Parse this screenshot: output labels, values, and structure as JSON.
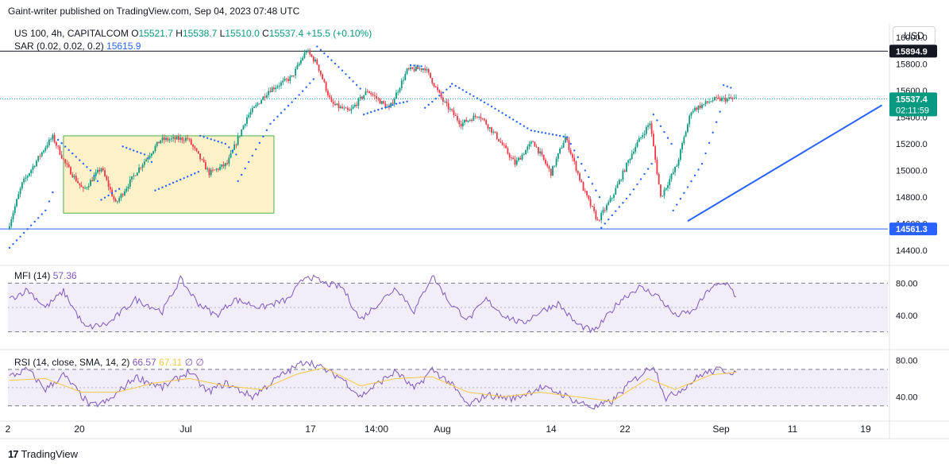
{
  "header": {
    "published": "Gaint-writer published on TradingView.com, Sep 04, 2023 07:48 UTC"
  },
  "legend": {
    "symbol": "US 100, 4h, CAPITALCOM",
    "o_label": "O",
    "o": "15521.7",
    "h_label": "H",
    "h": "15538.7",
    "l_label": "L",
    "l": "15510.0",
    "c_label": "C",
    "c": "15537.4",
    "change": "+15.5 (+0.10%)",
    "sar_label": "SAR (0.02, 0.02, 0.2)",
    "sar_value": "15615.9",
    "mfi_label": "MFI (14)",
    "mfi_value": "57.36",
    "rsi_label": "RSI (14, close, SMA, 14, 2)",
    "rsi_value": "66.57",
    "rsi_ma": "67.11",
    "rsi_z1": "∅",
    "rsi_z2": "∅"
  },
  "currency_button": "USD",
  "price_axis": {
    "ticks": [
      "16000.0",
      "15800.0",
      "15600.0",
      "15400.0",
      "15200.0",
      "15000.0",
      "14800.0",
      "14600.0",
      "14400.0"
    ],
    "tick_values": [
      16000,
      15800,
      15600,
      15400,
      15200,
      15000,
      14800,
      14600,
      14400
    ],
    "resistance_label": "15894.9",
    "resistance_value": 15894.9,
    "last_price_label": "15537.4",
    "last_price_value": 15537.4,
    "countdown": "02:11:59",
    "support_label": "14561.3",
    "support_value": 14561.3
  },
  "mfi_axis": {
    "ticks": [
      "80.00",
      "40.00"
    ],
    "tick_values": [
      80,
      40
    ],
    "bands": [
      80,
      50,
      20
    ]
  },
  "rsi_axis": {
    "ticks": [
      "80.00",
      "40.00"
    ],
    "tick_values": [
      80,
      40
    ],
    "bands": [
      70,
      50,
      30
    ]
  },
  "time_axis": {
    "labels": [
      "2",
      "20",
      "Jul",
      "17",
      "14:00",
      "Aug",
      "14",
      "22",
      "Sep",
      "11",
      "19"
    ]
  },
  "footer": {
    "brand": "TradingView",
    "mark": "17"
  },
  "colors": {
    "up": "#089981",
    "down": "#f23645",
    "sar": "#2962ff",
    "mfi": "#7e57c2",
    "rsi": "#7e57c2",
    "rsi_ma": "#f7c948",
    "range_fill": "#fdf1c8",
    "range_border": "#4caf50",
    "trendline": "#2962ff",
    "support": "#2962ff",
    "resistance": "#131722"
  },
  "chart_data": [
    {
      "type": "candlestick",
      "title": "US 100, 4h, CAPITALCOM",
      "ylim": [
        14300,
        16100
      ],
      "price_anchors": [
        [
          0,
          14560
        ],
        [
          8,
          14900
        ],
        [
          22,
          15200
        ],
        [
          25,
          15250
        ],
        [
          32,
          15050
        ],
        [
          42,
          14850
        ],
        [
          52,
          15020
        ],
        [
          60,
          14750
        ],
        [
          72,
          15000
        ],
        [
          85,
          15230
        ],
        [
          100,
          15240
        ],
        [
          112,
          14980
        ],
        [
          122,
          15050
        ],
        [
          133,
          15400
        ],
        [
          145,
          15600
        ],
        [
          158,
          15700
        ],
        [
          166,
          15900
        ],
        [
          172,
          15800
        ],
        [
          180,
          15500
        ],
        [
          190,
          15440
        ],
        [
          200,
          15600
        ],
        [
          212,
          15460
        ],
        [
          222,
          15750
        ],
        [
          232,
          15770
        ],
        [
          242,
          15520
        ],
        [
          252,
          15350
        ],
        [
          262,
          15420
        ],
        [
          272,
          15250
        ],
        [
          282,
          15050
        ],
        [
          292,
          15220
        ],
        [
          302,
          14980
        ],
        [
          310,
          15250
        ],
        [
          320,
          14860
        ],
        [
          328,
          14620
        ],
        [
          336,
          14800
        ],
        [
          348,
          15160
        ],
        [
          357,
          15360
        ],
        [
          363,
          14800
        ],
        [
          372,
          15040
        ],
        [
          380,
          15450
        ],
        [
          392,
          15530
        ],
        [
          402,
          15537
        ]
      ],
      "sar_segments": [
        {
          "side": "below",
          "points": [
            [
              0,
              14420
            ],
            [
              20,
              14700
            ],
            [
              25,
              14870
            ]
          ]
        },
        {
          "side": "above",
          "points": [
            [
              27,
              15230
            ],
            [
              45,
              15000
            ],
            [
              50,
              14900
            ]
          ]
        },
        {
          "side": "below",
          "points": [
            [
              51,
              14780
            ],
            [
              62,
              14870
            ]
          ]
        },
        {
          "side": "above",
          "points": [
            [
              63,
              15180
            ],
            [
              75,
              15120
            ],
            [
              80,
              15050
            ]
          ]
        },
        {
          "side": "below",
          "points": [
            [
              81,
              14850
            ],
            [
              100,
              14960
            ],
            [
              105,
              14990
            ]
          ]
        },
        {
          "side": "above",
          "points": [
            [
              106,
              15260
            ],
            [
              120,
              15200
            ],
            [
              126,
              15120
            ]
          ]
        },
        {
          "side": "below",
          "points": [
            [
              127,
              14920
            ],
            [
              145,
              15350
            ],
            [
              162,
              15580
            ],
            [
              170,
              15700
            ]
          ]
        },
        {
          "side": "above",
          "points": [
            [
              171,
              15930
            ],
            [
              185,
              15750
            ],
            [
              196,
              15600
            ]
          ]
        },
        {
          "side": "below",
          "points": [
            [
              197,
              15420
            ],
            [
              215,
              15500
            ],
            [
              222,
              15520
            ]
          ]
        },
        {
          "side": "above",
          "points": [
            [
              223,
              15790
            ],
            [
              230,
              15780
            ]
          ]
        },
        {
          "side": "below",
          "points": [
            [
              231,
              15470
            ],
            [
              245,
              15630
            ]
          ]
        },
        {
          "side": "above",
          "points": [
            [
              246,
              15650
            ],
            [
              268,
              15480
            ],
            [
              290,
              15300
            ],
            [
              310,
              15250
            ],
            [
              328,
              14800
            ]
          ]
        },
        {
          "side": "below",
          "points": [
            [
              329,
              14570
            ],
            [
              345,
              14820
            ],
            [
              357,
              15050
            ]
          ]
        },
        {
          "side": "above",
          "points": [
            [
              358,
              15420
            ],
            [
              368,
              15200
            ]
          ]
        },
        {
          "side": "below",
          "points": [
            [
              369,
              14700
            ],
            [
              385,
              15050
            ],
            [
              396,
              15480
            ]
          ]
        },
        {
          "side": "above",
          "points": [
            [
              397,
              15640
            ],
            [
              402,
              15616
            ]
          ]
        }
      ],
      "support": 14561.3,
      "resistance": 15894.9,
      "last_price": 15537.4,
      "consolidation_box": {
        "x_start": 30,
        "x_end": 147,
        "y_top": 15260,
        "y_bottom": 14680
      },
      "trendline": {
        "from": [
          377,
          14620
        ],
        "to": [
          485,
          15490
        ]
      }
    },
    {
      "type": "line",
      "title": "MFI (14)",
      "ylim": [
        0,
        100
      ],
      "bands": [
        80,
        50,
        20
      ],
      "last_value": 57.36,
      "anchors": [
        [
          0,
          60
        ],
        [
          10,
          72
        ],
        [
          20,
          50
        ],
        [
          30,
          70
        ],
        [
          42,
          25
        ],
        [
          55,
          30
        ],
        [
          70,
          60
        ],
        [
          85,
          45
        ],
        [
          95,
          85
        ],
        [
          105,
          55
        ],
        [
          115,
          40
        ],
        [
          125,
          60
        ],
        [
          140,
          50
        ],
        [
          155,
          60
        ],
        [
          165,
          90
        ],
        [
          175,
          80
        ],
        [
          185,
          75
        ],
        [
          195,
          35
        ],
        [
          205,
          55
        ],
        [
          215,
          75
        ],
        [
          225,
          45
        ],
        [
          235,
          90
        ],
        [
          245,
          55
        ],
        [
          255,
          35
        ],
        [
          265,
          60
        ],
        [
          275,
          40
        ],
        [
          285,
          30
        ],
        [
          295,
          45
        ],
        [
          305,
          55
        ],
        [
          315,
          30
        ],
        [
          325,
          20
        ],
        [
          340,
          60
        ],
        [
          350,
          75
        ],
        [
          360,
          65
        ],
        [
          370,
          40
        ],
        [
          380,
          45
        ],
        [
          390,
          75
        ],
        [
          400,
          80
        ],
        [
          405,
          57
        ]
      ]
    },
    {
      "type": "line",
      "title": "RSI (14, close, SMA, 14, 2)",
      "ylim": [
        15,
        90
      ],
      "bands": [
        70,
        50,
        30
      ],
      "last_value": 66.57,
      "ma_last_value": 67.11,
      "anchors": [
        [
          0,
          62
        ],
        [
          10,
          70
        ],
        [
          20,
          48
        ],
        [
          30,
          64
        ],
        [
          45,
          30
        ],
        [
          55,
          35
        ],
        [
          70,
          62
        ],
        [
          85,
          50
        ],
        [
          100,
          68
        ],
        [
          110,
          45
        ],
        [
          120,
          55
        ],
        [
          135,
          40
        ],
        [
          150,
          62
        ],
        [
          165,
          80
        ],
        [
          175,
          70
        ],
        [
          185,
          60
        ],
        [
          195,
          40
        ],
        [
          205,
          55
        ],
        [
          215,
          68
        ],
        [
          225,
          48
        ],
        [
          235,
          70
        ],
        [
          245,
          55
        ],
        [
          255,
          30
        ],
        [
          265,
          42
        ],
        [
          280,
          38
        ],
        [
          295,
          50
        ],
        [
          305,
          45
        ],
        [
          315,
          35
        ],
        [
          325,
          28
        ],
        [
          335,
          35
        ],
        [
          345,
          55
        ],
        [
          358,
          75
        ],
        [
          365,
          38
        ],
        [
          375,
          50
        ],
        [
          385,
          65
        ],
        [
          395,
          70
        ],
        [
          400,
          68
        ],
        [
          405,
          66.5
        ]
      ],
      "ma_anchors": [
        [
          0,
          58
        ],
        [
          20,
          60
        ],
        [
          40,
          45
        ],
        [
          60,
          45
        ],
        [
          80,
          55
        ],
        [
          100,
          60
        ],
        [
          120,
          52
        ],
        [
          140,
          48
        ],
        [
          160,
          65
        ],
        [
          175,
          72
        ],
        [
          195,
          52
        ],
        [
          215,
          60
        ],
        [
          235,
          62
        ],
        [
          255,
          45
        ],
        [
          275,
          40
        ],
        [
          295,
          45
        ],
        [
          315,
          40
        ],
        [
          335,
          35
        ],
        [
          355,
          60
        ],
        [
          370,
          48
        ],
        [
          390,
          64
        ],
        [
          405,
          67
        ]
      ]
    }
  ]
}
